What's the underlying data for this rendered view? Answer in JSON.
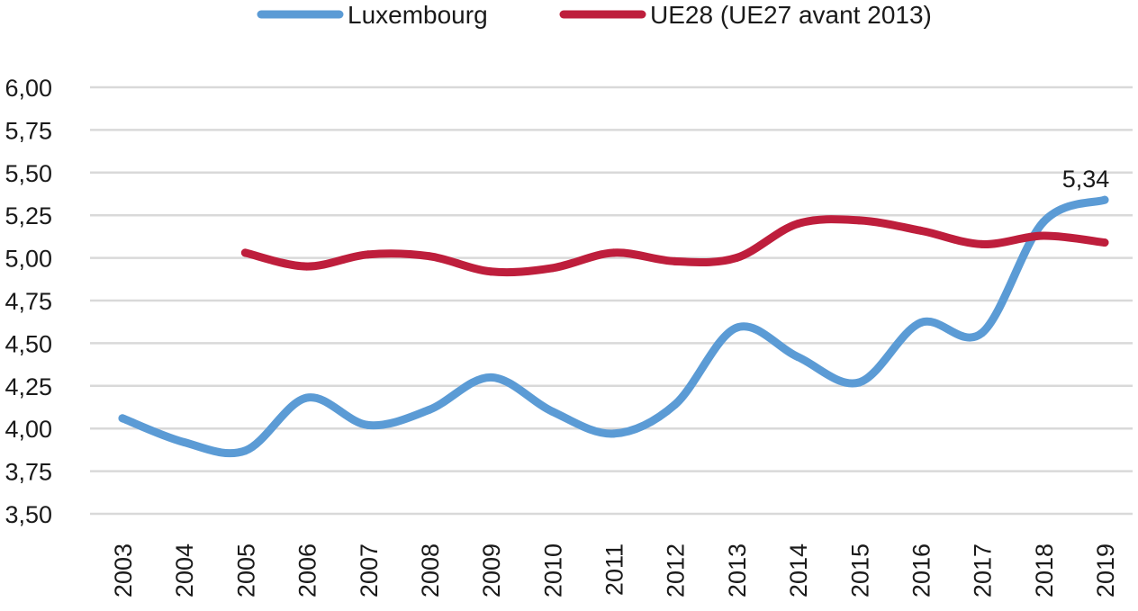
{
  "chart_data": {
    "type": "line",
    "title": "",
    "xlabel": "",
    "ylabel": "",
    "categories": [
      "2003",
      "2004",
      "2005",
      "2006",
      "2007",
      "2008",
      "2009",
      "2010",
      "2011",
      "2012",
      "2013",
      "2014",
      "2015",
      "2016",
      "2017",
      "2018",
      "2019"
    ],
    "y_ticks": [
      "3,50",
      "3,75",
      "4,00",
      "4,25",
      "4,50",
      "4,75",
      "5,00",
      "5,25",
      "5,50",
      "5,75",
      "6,00"
    ],
    "ylim": [
      3.5,
      6.0
    ],
    "grid": "horizontal",
    "legend_position": "top",
    "series": [
      {
        "name": "Luxembourg",
        "color": "#5b9bd5",
        "values": [
          4.06,
          3.92,
          3.87,
          4.18,
          4.02,
          4.11,
          4.3,
          4.1,
          3.97,
          4.14,
          4.59,
          4.42,
          4.27,
          4.62,
          4.56,
          5.21,
          5.34
        ]
      },
      {
        "name": "UE28 (UE27 avant 2013)",
        "color": "#be1e3c",
        "values": [
          null,
          null,
          5.03,
          4.95,
          5.02,
          5.01,
          4.92,
          4.94,
          5.03,
          4.98,
          5.0,
          5.2,
          5.22,
          5.16,
          5.08,
          5.13,
          5.09
        ]
      }
    ],
    "data_labels": [
      {
        "series": 0,
        "index": 16,
        "text": "5,34"
      }
    ]
  }
}
